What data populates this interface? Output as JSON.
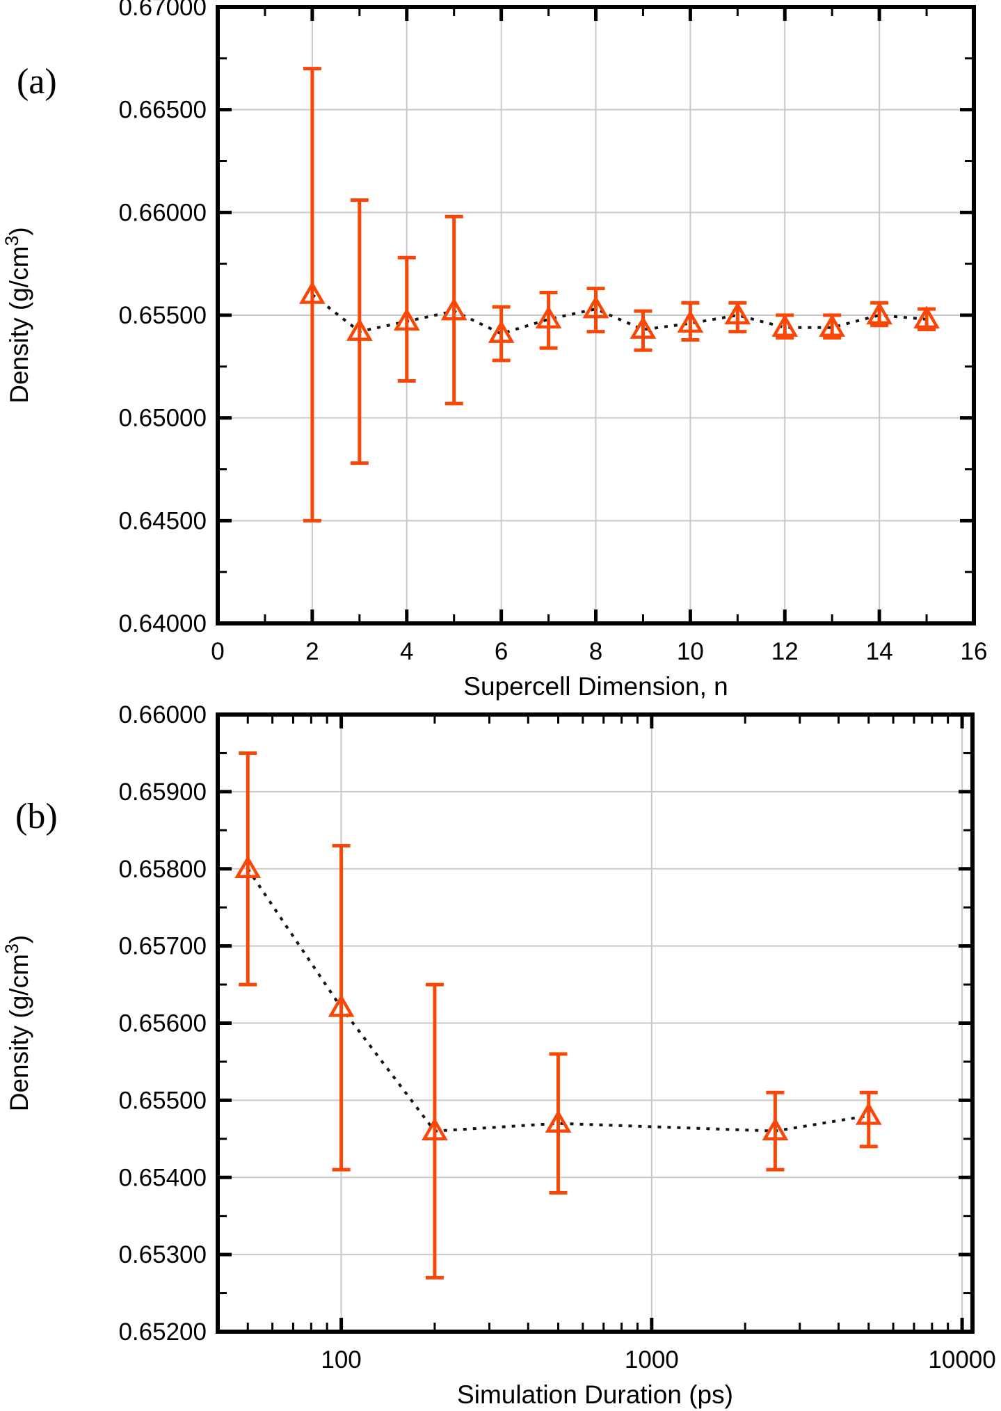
{
  "figure": {
    "background": "#ffffff",
    "accent_color": "#f94708",
    "grid_color": "#c9c9c9",
    "trend_line_color": "#141414",
    "axis_color": "#000000"
  },
  "chart_data": [
    {
      "id": "a",
      "panel_label": "(a)",
      "type": "scatter",
      "x_scale": "linear",
      "xlabel": "Supercell Dimension, n",
      "ylabel": "Density (g/cm³)",
      "xlim": [
        0,
        16
      ],
      "ylim": [
        0.64,
        0.67
      ],
      "x_ticks": [
        0,
        2,
        4,
        6,
        8,
        10,
        12,
        14,
        16
      ],
      "x_tick_labels": [
        "0",
        "2",
        "4",
        "6",
        "8",
        "10",
        "12",
        "14",
        "16"
      ],
      "x_minor_ticks": [
        1,
        3,
        5,
        7,
        9,
        11,
        13,
        15
      ],
      "y_ticks": [
        0.64,
        0.645,
        0.65,
        0.655,
        0.66,
        0.665,
        0.67
      ],
      "y_tick_labels": [
        "0.64000",
        "0.64500",
        "0.65000",
        "0.65500",
        "0.66000",
        "0.66500",
        "0.67000"
      ],
      "y_minor_ticks": [
        0.6425,
        0.6475,
        0.6525,
        0.6575,
        0.6625,
        0.6675
      ],
      "grid": true,
      "legend": null,
      "marker": "open-triangle-up",
      "line_style": "dotted",
      "series": [
        {
          "name": "density-vs-supercell-dimension",
          "x": [
            2,
            3,
            4,
            5,
            6,
            7,
            8,
            9,
            10,
            11,
            12,
            13,
            14,
            15
          ],
          "y": [
            0.656,
            0.6542,
            0.6547,
            0.6552,
            0.6541,
            0.6548,
            0.6553,
            0.6543,
            0.6546,
            0.655,
            0.6544,
            0.6544,
            0.655,
            0.6548
          ],
          "y_lower": [
            0.645,
            0.6478,
            0.6518,
            0.6507,
            0.6528,
            0.6534,
            0.6542,
            0.6533,
            0.6538,
            0.6542,
            0.6539,
            0.6539,
            0.6545,
            0.6543
          ],
          "y_upper": [
            0.667,
            0.6606,
            0.6578,
            0.6598,
            0.6554,
            0.6561,
            0.6563,
            0.6552,
            0.6556,
            0.6556,
            0.655,
            0.655,
            0.6556,
            0.6553
          ]
        }
      ]
    },
    {
      "id": "b",
      "panel_label": "(b)",
      "type": "scatter",
      "x_scale": "log",
      "xlabel": "Simulation Duration (ps)",
      "ylabel": "Density (g/cm³)",
      "xlim": [
        40,
        10800
      ],
      "ylim": [
        0.652,
        0.66
      ],
      "x_ticks": [
        100,
        1000,
        10000
      ],
      "x_tick_labels": [
        "100",
        "1000",
        "10000"
      ],
      "x_minor_ticks": [
        50,
        60,
        70,
        80,
        90,
        200,
        300,
        400,
        500,
        600,
        700,
        800,
        900,
        2000,
        3000,
        4000,
        5000,
        6000,
        7000,
        8000,
        9000
      ],
      "y_ticks": [
        0.652,
        0.653,
        0.654,
        0.655,
        0.656,
        0.657,
        0.658,
        0.659,
        0.66
      ],
      "y_tick_labels": [
        "0.65200",
        "0.65300",
        "0.65400",
        "0.65500",
        "0.65600",
        "0.65700",
        "0.65800",
        "0.65900",
        "0.66000"
      ],
      "y_minor_ticks": [
        0.6525,
        0.6535,
        0.6545,
        0.6555,
        0.6565,
        0.6575,
        0.6585,
        0.6595
      ],
      "grid": true,
      "legend": null,
      "marker": "open-triangle-up",
      "line_style": "dotted",
      "series": [
        {
          "name": "density-vs-simulation-duration",
          "x": [
            50,
            100,
            200,
            500,
            2500,
            5000
          ],
          "y": [
            0.658,
            0.6562,
            0.6546,
            0.6547,
            0.6546,
            0.6548
          ],
          "y_lower": [
            0.6565,
            0.6541,
            0.6527,
            0.6538,
            0.6541,
            0.6544
          ],
          "y_upper": [
            0.6595,
            0.6583,
            0.6565,
            0.6556,
            0.6551,
            0.6551
          ]
        }
      ]
    }
  ]
}
